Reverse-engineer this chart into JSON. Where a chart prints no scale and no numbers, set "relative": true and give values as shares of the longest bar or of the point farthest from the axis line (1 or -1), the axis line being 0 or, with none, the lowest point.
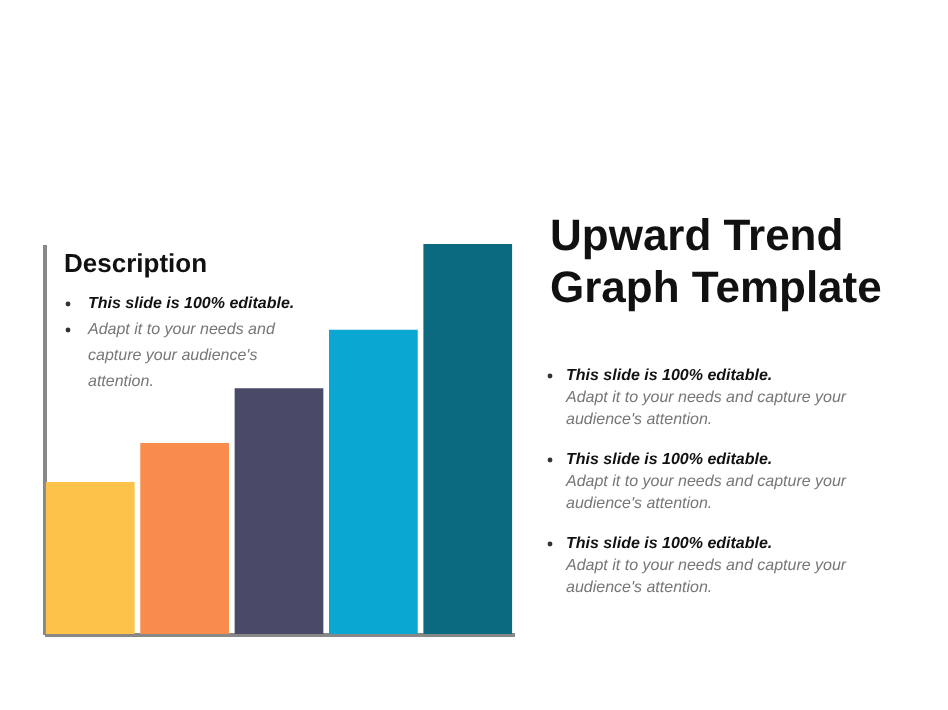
{
  "chart_data": {
    "type": "bar",
    "title": "Upward Trend Graph Template",
    "relative": true,
    "categories": [
      null,
      null,
      null,
      null,
      null
    ],
    "values": [
      0.39,
      0.49,
      0.63,
      0.78,
      1
    ],
    "colors": [
      "#fcc24a",
      "#f98c4c",
      "#4a4a68",
      "#0ba7d3",
      "#0b6a80"
    ],
    "annotations": [
      "Description",
      "This slide is 100% editable.",
      "Adapt it to your needs and capture your audience's attention.",
      "This slide is 100% editable.",
      "Adapt it to your needs and capture your audience's attention.",
      "This slide is 100% editable.",
      "Adapt it to your needs and capture your audience's attention.",
      "This slide is 100% editable.",
      "Adapt it to your needs and capture your audience's attention."
    ]
  }
}
